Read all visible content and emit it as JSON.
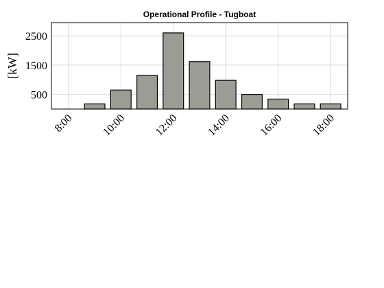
{
  "chart_data": {
    "type": "bar",
    "title": "Operational Profile - Tugboat",
    "xlabel": "",
    "ylabel": "[kW]",
    "x": [
      8,
      9,
      10,
      11,
      12,
      13,
      14,
      15,
      16,
      17,
      18
    ],
    "values": [
      0,
      175,
      650,
      1150,
      2600,
      1620,
      980,
      500,
      340,
      175,
      175
    ],
    "x_ticks": [
      "8:00",
      "10:00",
      "12:00",
      "14:00",
      "16:00",
      "18:00"
    ],
    "y_ticks": [
      500,
      1500,
      2500
    ],
    "ylim": [
      0,
      2950
    ],
    "grid": true,
    "colors": {
      "bar_fill": "#9a9d94",
      "bar_edge": "#000000"
    }
  }
}
